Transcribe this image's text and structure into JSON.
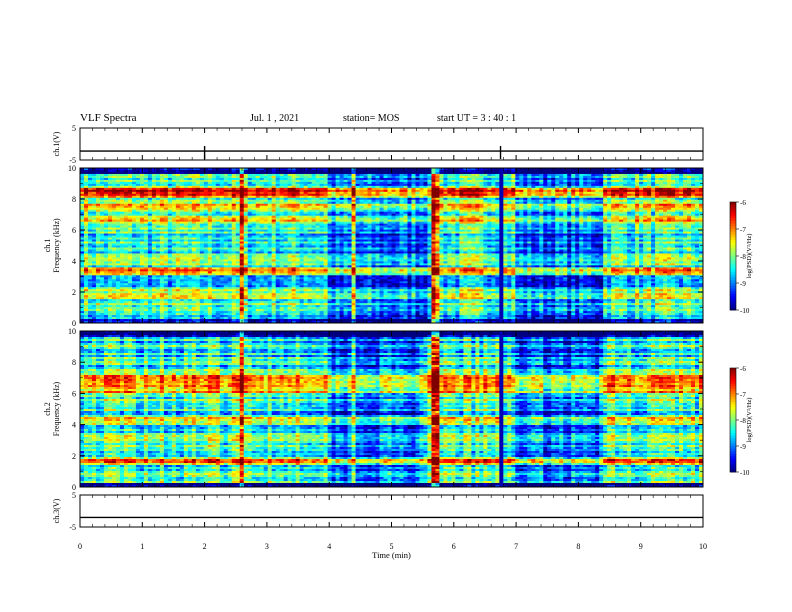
{
  "header": {
    "title": "VLF Spectra",
    "date": "Jul. 1 , 2021",
    "station": "station= MOS",
    "start": "start UT = 3 : 40 : 1"
  },
  "chart_data": [
    {
      "type": "line",
      "ylabel": "ch.1(V)",
      "ylim": [
        -5,
        5
      ],
      "yticks": [
        "5",
        "-5"
      ],
      "x": [
        0,
        10
      ],
      "values": [
        -2.2,
        -2.2
      ]
    },
    {
      "type": "heatmap",
      "ylabel": "ch.1  Frequency (kHz)",
      "ylim": [
        0,
        10
      ],
      "yticks": [
        "0",
        "2",
        "4",
        "6",
        "8",
        "10"
      ],
      "xlim": [
        0,
        10
      ],
      "colorbar": {
        "label": "log(PSD)(V²/Hz)",
        "range": [
          -10,
          -6
        ],
        "ticks": [
          "-6",
          "-7",
          "-8",
          "-9",
          "-10"
        ]
      },
      "strong_bands_khz": [
        8.6,
        8.3,
        7.6,
        6.7,
        3.4,
        1.8
      ],
      "broadband_spikes_min": [
        2.6,
        4.4,
        5.7,
        6.75
      ]
    },
    {
      "type": "heatmap",
      "ylabel": "ch.2  Frequency (kHz)",
      "ylim": [
        0,
        10
      ],
      "yticks": [
        "0",
        "2",
        "4",
        "6",
        "8",
        "10"
      ],
      "xlim": [
        0,
        10
      ],
      "colorbar": {
        "label": "log(PSD)(V²/Hz)",
        "range": [
          -10,
          -6
        ],
        "ticks": [
          "-6",
          "-7",
          "-8",
          "-9",
          "-10"
        ]
      },
      "strong_bands_khz": [
        7.0,
        6.6,
        6.2,
        4.3,
        1.7
      ],
      "broadband_spikes_min": [
        2.6,
        4.4,
        5.7,
        6.75
      ]
    },
    {
      "type": "line",
      "ylabel": "ch.3(V)",
      "ylim": [
        -5,
        5
      ],
      "yticks": [
        "5",
        "-5"
      ],
      "x": [
        0,
        10
      ],
      "values": [
        -2.0,
        -2.0
      ]
    }
  ],
  "xaxis": {
    "label": "Time (min)",
    "ticks": [
      "0",
      "1",
      "2",
      "3",
      "4",
      "5",
      "6",
      "7",
      "8",
      "9",
      "10"
    ]
  }
}
